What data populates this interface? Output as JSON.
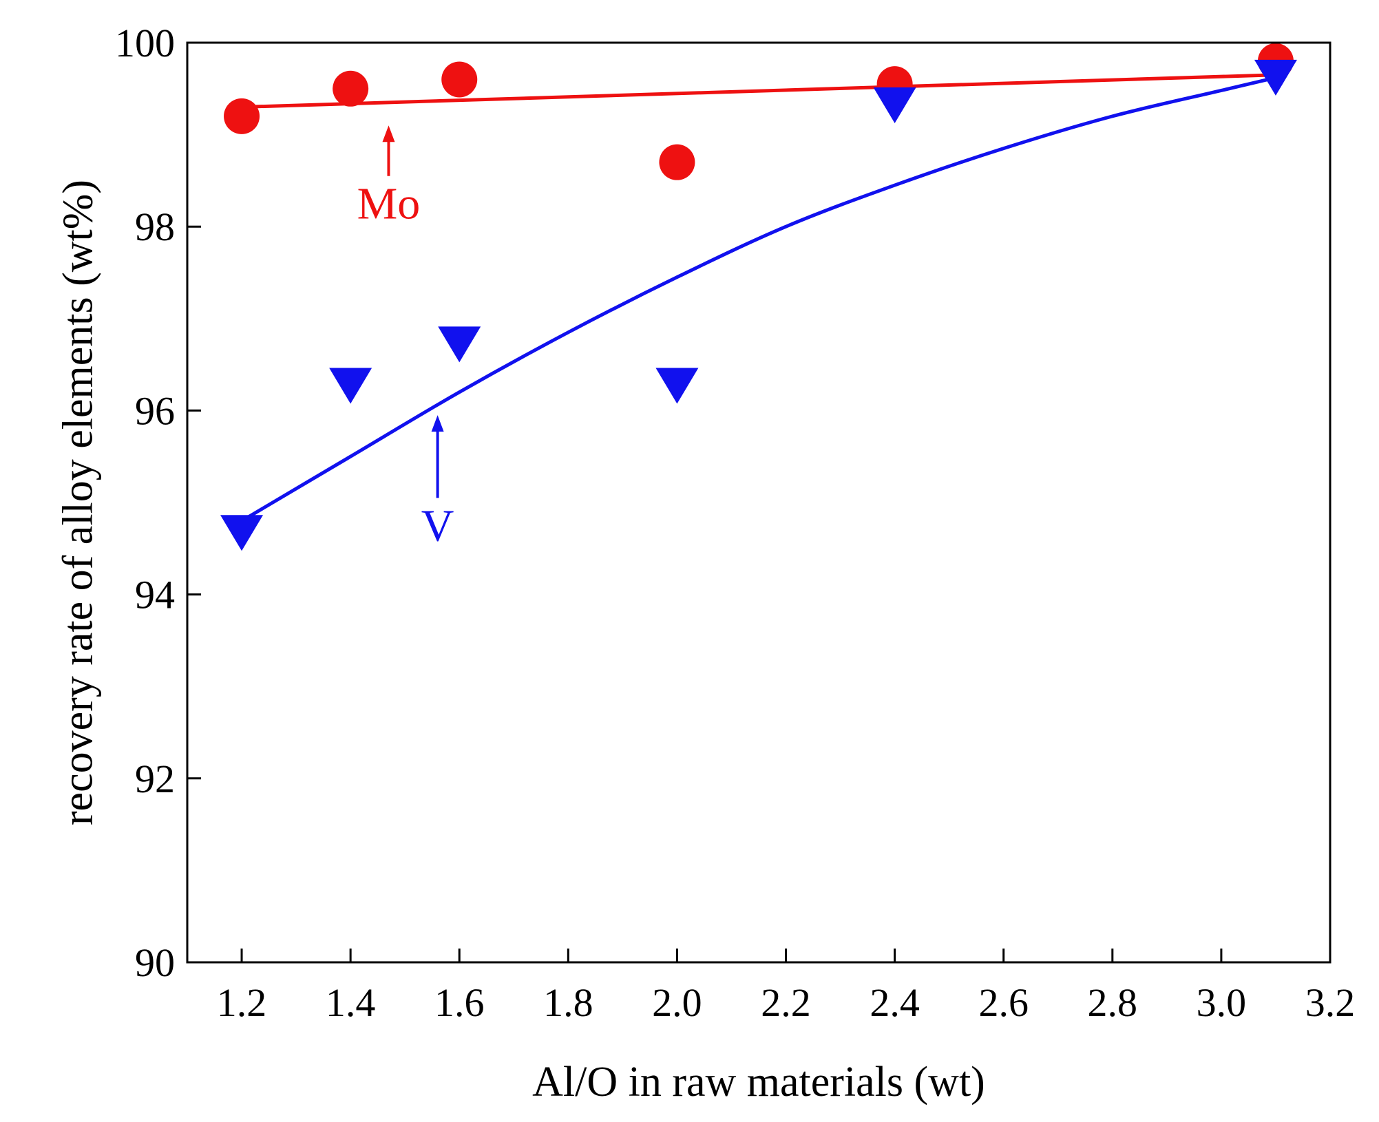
{
  "chart_data": {
    "type": "scatter",
    "title": "",
    "xlabel": "Al/O in raw materials (wt)",
    "ylabel": "recovery rate of alloy elements (wt%)",
    "xlim": [
      1.1,
      3.2
    ],
    "ylim": [
      90,
      100
    ],
    "x_ticks": [
      "1.2",
      "1.4",
      "1.6",
      "1.8",
      "2.0",
      "2.2",
      "2.4",
      "2.6",
      "2.8",
      "3.0",
      "3.2"
    ],
    "y_ticks": [
      "90",
      "92",
      "94",
      "96",
      "98",
      "100"
    ],
    "grid": false,
    "legend": "none",
    "series": [
      {
        "name": "Mo",
        "marker": "circle",
        "color": "#ee1111",
        "x": [
          1.2,
          1.4,
          1.6,
          2.0,
          2.4,
          3.1
        ],
        "y": [
          99.2,
          99.5,
          99.6,
          98.7,
          99.55,
          99.8
        ],
        "fit": {
          "type": "linear",
          "x": [
            1.2,
            3.1
          ],
          "y": [
            99.3,
            99.65
          ]
        }
      },
      {
        "name": "V",
        "marker": "triangle-down",
        "color": "#1111ee",
        "x": [
          1.2,
          1.4,
          1.6,
          2.0,
          2.4,
          3.1
        ],
        "y": [
          94.7,
          96.3,
          96.75,
          96.3,
          99.35,
          99.65
        ],
        "fit": {
          "type": "curve",
          "x": [
            1.2,
            1.4,
            1.6,
            1.8,
            2.0,
            2.2,
            2.4,
            2.6,
            2.8,
            3.0,
            3.1
          ],
          "y": [
            94.8,
            95.5,
            96.2,
            96.85,
            97.45,
            98.0,
            98.45,
            98.85,
            99.2,
            99.48,
            99.62
          ]
        }
      }
    ],
    "annotations": [
      {
        "text": "Mo",
        "color": "#ee1111",
        "arrow_from": [
          1.47,
          98.55
        ],
        "arrow_to": [
          1.47,
          99.1
        ]
      },
      {
        "text": "V",
        "color": "#1111ee",
        "arrow_from": [
          1.56,
          95.05
        ],
        "arrow_to": [
          1.56,
          95.95
        ]
      }
    ]
  }
}
